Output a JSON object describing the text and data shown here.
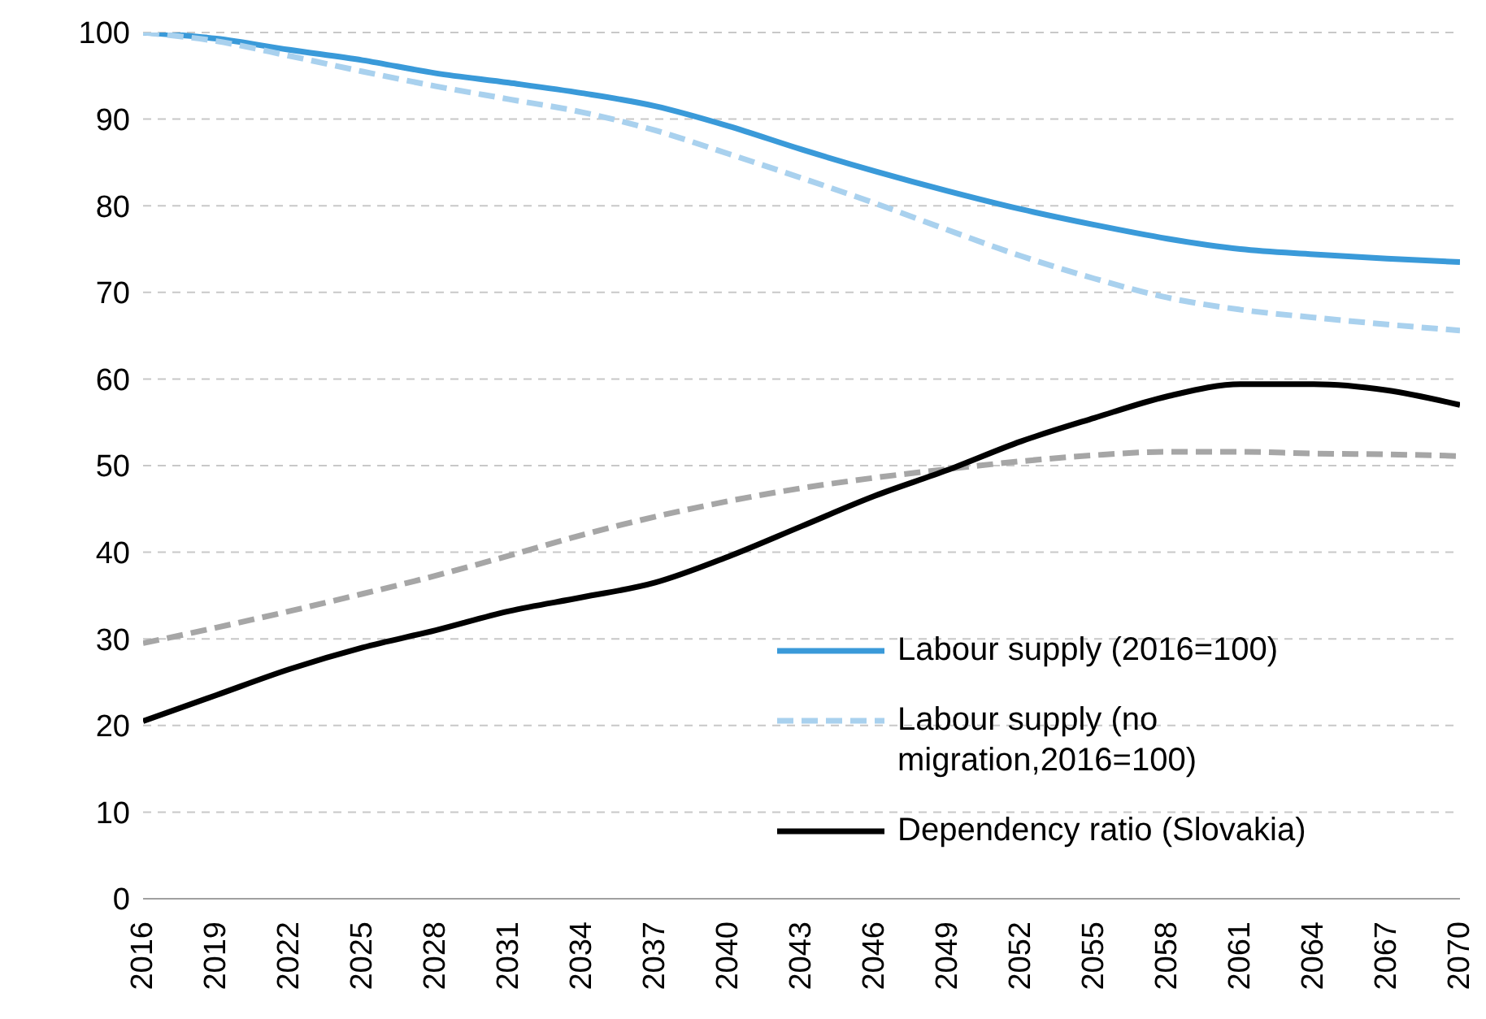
{
  "chart_data": {
    "type": "line",
    "x": [
      2016,
      2019,
      2022,
      2025,
      2028,
      2031,
      2034,
      2037,
      2040,
      2043,
      2046,
      2049,
      2052,
      2055,
      2058,
      2061,
      2064,
      2067,
      2070
    ],
    "series": [
      {
        "name": "Labour supply (2016=100)",
        "color": "#3a9ad9",
        "line_style": "solid",
        "values": [
          100,
          99.3,
          98,
          96.8,
          95.3,
          94.2,
          93,
          91.5,
          89.2,
          86.5,
          84,
          81.7,
          79.6,
          77.8,
          76.2,
          75,
          74.4,
          73.9,
          73.5
        ]
      },
      {
        "name": "Labour supply (no migration,2016=100)",
        "color": "#a9d1ee",
        "line_style": "dashed",
        "values": [
          100,
          99,
          97.3,
          95.5,
          93.8,
          92.3,
          90.8,
          88.7,
          86,
          83.2,
          80.3,
          77.2,
          74.2,
          71.6,
          69.4,
          68,
          67.1,
          66.3,
          65.6
        ]
      },
      {
        "color": "#a6a6a6",
        "line_style": "dashed",
        "values": [
          29.5,
          31.3,
          33.2,
          35.2,
          37.3,
          39.6,
          42,
          44.1,
          45.9,
          47.4,
          48.6,
          49.6,
          50.5,
          51.2,
          51.6,
          51.6,
          51.4,
          51.3,
          51.1
        ]
      },
      {
        "name": "Dependency ratio (Slovakia)",
        "color": "#000000",
        "line_style": "solid",
        "values": [
          20.5,
          23.5,
          26.5,
          29,
          31,
          33.2,
          34.8,
          36.5,
          39.5,
          43,
          46.5,
          49.5,
          52.8,
          55.5,
          58,
          59.4,
          59.4,
          58.7,
          57
        ]
      }
    ],
    "xlim": [
      2016,
      2070
    ],
    "xticks": [
      2016,
      2019,
      2022,
      2025,
      2028,
      2031,
      2034,
      2037,
      2040,
      2043,
      2046,
      2049,
      2052,
      2055,
      2058,
      2061,
      2064,
      2067,
      2070
    ],
    "ylim": [
      0,
      100
    ],
    "yticks": [
      0,
      10,
      20,
      30,
      40,
      50,
      60,
      70,
      80,
      90,
      100
    ],
    "grid": "y",
    "legend": "bottom right",
    "marker": "none"
  }
}
